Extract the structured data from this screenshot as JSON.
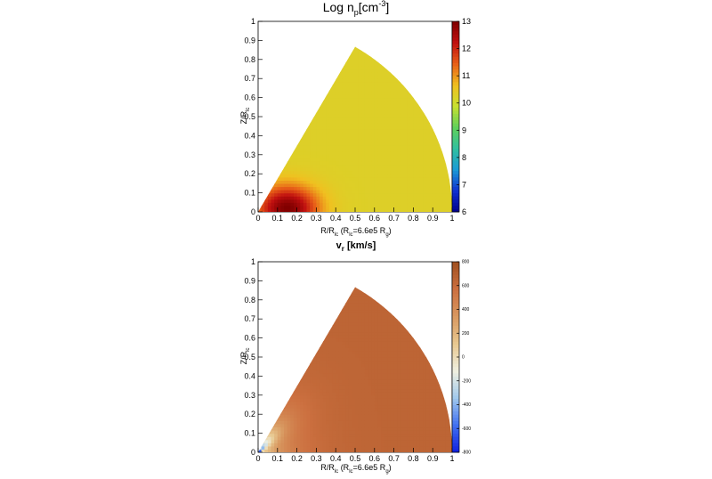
{
  "chart_data": [
    {
      "type": "heatmap",
      "title": "Log n",
      "title_sub": "p",
      "title_unit_pre": "[cm",
      "title_sup": "-3",
      "title_unit_post": "]",
      "xlabel_pre": "R/R",
      "xlabel_sub": "lc",
      "xlabel_mid": " (R",
      "xlabel_sub2": "lc",
      "xlabel_post": "=6.6e5 R",
      "xlabel_sub3": "g",
      "xlabel_end": ")",
      "ylabel": "Z/R",
      "ylabel_sub": "lc",
      "xlim": [
        0,
        1
      ],
      "ylim": [
        0,
        1
      ],
      "x_ticks": [
        "0",
        "0.1",
        "0.2",
        "0.3",
        "0.4",
        "0.5",
        "0.6",
        "0.7",
        "0.8",
        "0.9",
        "1"
      ],
      "y_ticks": [
        "0",
        "0.1",
        "0.2",
        "0.3",
        "0.4",
        "0.5",
        "0.6",
        "0.7",
        "0.8",
        "0.9",
        "1"
      ],
      "colorbar_range": [
        6,
        13
      ],
      "colorbar_ticks": [
        "6",
        "7",
        "8",
        "9",
        "10",
        "11",
        "12",
        "13"
      ],
      "domain_wedge_angle_deg": 60,
      "domain_radius": 1.0,
      "field_description": {
        "background_value": 10.3,
        "peak_value": 13,
        "peak_location": [
          0.15,
          0.02
        ]
      }
    },
    {
      "type": "heatmap",
      "title": "v",
      "title_sub": "r",
      "title_unit_pre": " [km/s]",
      "xlabel_pre": "R/R",
      "xlabel_sub": "lc",
      "xlabel_mid": " (R",
      "xlabel_sub2": "lc",
      "xlabel_post": "=6.6e5 R",
      "xlabel_sub3": "g",
      "xlabel_end": ")",
      "ylabel": "Z/R",
      "ylabel_sub": "lc",
      "xlim": [
        0,
        1
      ],
      "ylim": [
        0,
        1
      ],
      "x_ticks": [
        "0",
        "0.1",
        "0.2",
        "0.3",
        "0.4",
        "0.5",
        "0.6",
        "0.7",
        "0.8",
        "0.9",
        "1"
      ],
      "y_ticks": [
        "0",
        "0.1",
        "0.2",
        "0.3",
        "0.4",
        "0.5",
        "0.6",
        "0.7",
        "0.8",
        "0.9",
        "1"
      ],
      "colorbar_range": [
        -800,
        800
      ],
      "colorbar_ticks": [
        "-800",
        "-600",
        "-400",
        "-200",
        "0",
        "200",
        "400",
        "600",
        "800"
      ],
      "domain_wedge_angle_deg": 60,
      "domain_radius": 1.0,
      "field_description": {
        "background_value": 650,
        "min_value": -800,
        "min_location": [
          0.04,
          0.03
        ]
      }
    }
  ],
  "colors": {
    "palette": [
      "#00008b",
      "#1030d0",
      "#1a9ad6",
      "#30c0a0",
      "#5fd05a",
      "#c8e030",
      "#f0c020",
      "#e86018",
      "#c01010",
      "#800000"
    ],
    "palette2": [
      "#1020e0",
      "#4070f0",
      "#a0c8ec",
      "#f0f0e0",
      "#e8c890",
      "#d89860",
      "#cc7040",
      "#a05020"
    ]
  }
}
